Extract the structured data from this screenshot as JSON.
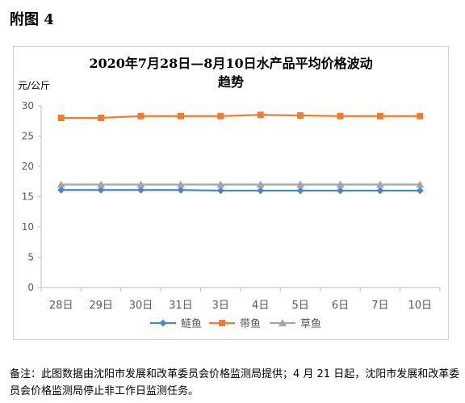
{
  "figure_label": "附图 4",
  "note": "备注：此图数据由沈阳市发展和改革委员会价格监测局提供；4 月 21 日起，沈阳市发展和改革委员会价格监测局停止非工作日监测任务。",
  "chart_data": {
    "type": "line",
    "title_line1": "2020年7月28日—8月10日水产品平均价格波动",
    "title_line2": "趋势",
    "ylabel": "元/公斤",
    "ylim": [
      0,
      30
    ],
    "yticks": [
      0,
      5,
      10,
      15,
      20,
      25,
      30
    ],
    "grid": false,
    "legend_position": "bottom",
    "categories": [
      "28日",
      "29日",
      "30日",
      "31日",
      "3日",
      "4日",
      "5日",
      "6日",
      "7日",
      "10日"
    ],
    "series": [
      {
        "name": "鲢鱼",
        "marker": "diamond",
        "color": "#4a86c8",
        "values": [
          16.1,
          16.1,
          16.1,
          16.1,
          16.0,
          16.0,
          16.0,
          16.0,
          16.0,
          16.0
        ]
      },
      {
        "name": "带鱼",
        "marker": "square",
        "color": "#ed7d31",
        "values": [
          28.0,
          28.0,
          28.3,
          28.3,
          28.3,
          28.5,
          28.4,
          28.3,
          28.3,
          28.3
        ]
      },
      {
        "name": "草鱼",
        "marker": "triangle",
        "color": "#a5a5a5",
        "values": [
          17.0,
          17.0,
          17.0,
          17.0,
          17.0,
          17.0,
          17.0,
          17.0,
          17.0,
          17.0
        ]
      }
    ]
  }
}
